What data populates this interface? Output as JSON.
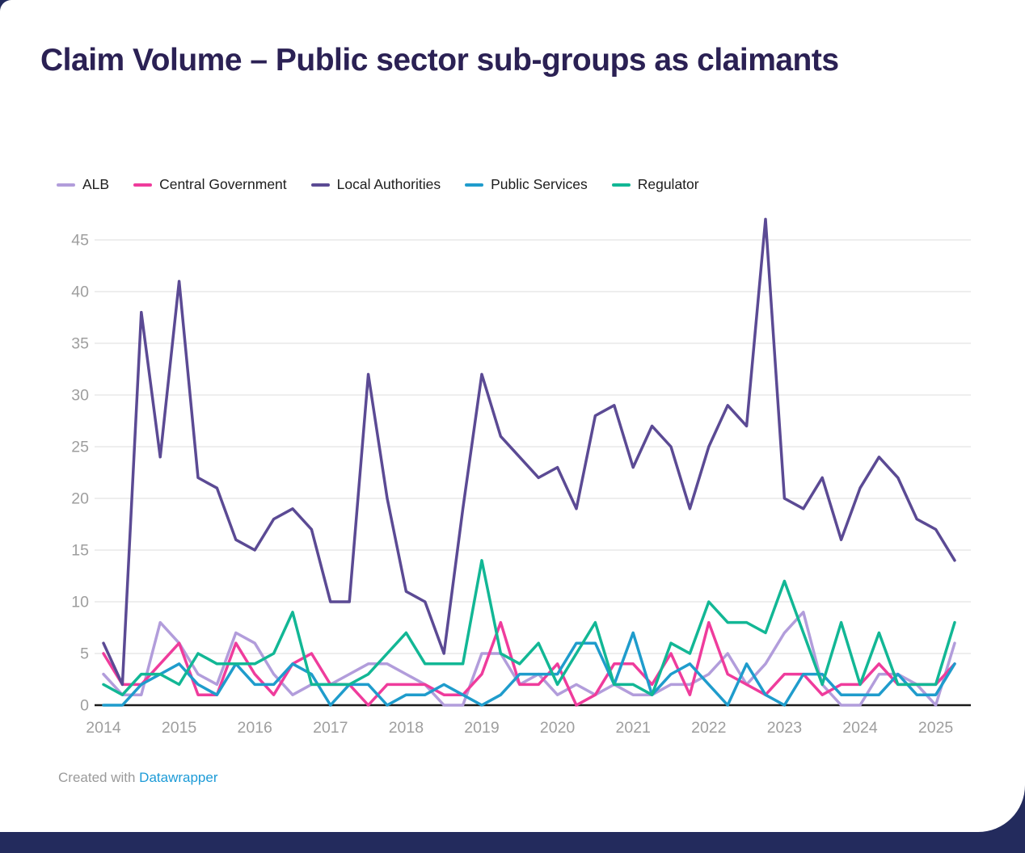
{
  "page": {
    "title": "Claim Volume – Public sector sub-groups as claimants"
  },
  "footer": {
    "prefix": "Created with ",
    "link_label": "Datawrapper"
  },
  "colors": {
    "title": "#2b2154",
    "axis_text": "#9e9e9e",
    "gridline": "#e8e8e8",
    "baseline": "#1a1a1a",
    "footer_text": "#9a9a9a",
    "footer_link": "#1d9bd7",
    "page_frame": "#232b5d",
    "card_background": "#ffffff"
  },
  "chart_data": {
    "type": "line",
    "title": "Claim Volume – Public sector sub-groups as claimants",
    "x_unit": "quarterly",
    "grid": true,
    "legend_position": "top",
    "ylim": [
      0,
      45
    ],
    "y_ticks": [
      0,
      5,
      10,
      15,
      20,
      25,
      30,
      35,
      40,
      45
    ],
    "x_year_ticks": [
      "2014",
      "2015",
      "2016",
      "2017",
      "2018",
      "2019",
      "2020",
      "2021",
      "2022",
      "2023",
      "2024",
      "2025"
    ],
    "quarters": [
      "2014 Q1",
      "2014 Q2",
      "2014 Q3",
      "2014 Q4",
      "2015 Q1",
      "2015 Q2",
      "2015 Q3",
      "2015 Q4",
      "2016 Q1",
      "2016 Q2",
      "2016 Q3",
      "2016 Q4",
      "2017 Q1",
      "2017 Q2",
      "2017 Q3",
      "2017 Q4",
      "2018 Q1",
      "2018 Q2",
      "2018 Q3",
      "2018 Q4",
      "2019 Q1",
      "2019 Q2",
      "2019 Q3",
      "2019 Q4",
      "2020 Q1",
      "2020 Q2",
      "2020 Q3",
      "2020 Q4",
      "2021 Q1",
      "2021 Q2",
      "2021 Q3",
      "2021 Q4",
      "2022 Q1",
      "2022 Q2",
      "2022 Q3",
      "2022 Q4",
      "2023 Q1",
      "2023 Q2",
      "2023 Q3",
      "2023 Q4",
      "2024 Q1",
      "2024 Q2",
      "2024 Q3",
      "2024 Q4",
      "2025 Q1",
      "2025 Q2"
    ],
    "series": [
      {
        "name": "ALB",
        "color": "#b29ddb",
        "values": [
          3,
          1,
          1,
          8,
          6,
          3,
          2,
          7,
          6,
          3,
          1,
          2,
          2,
          3,
          4,
          4,
          3,
          2,
          0,
          0,
          5,
          5,
          2,
          3,
          1,
          2,
          1,
          2,
          1,
          1,
          2,
          2,
          3,
          5,
          2,
          4,
          7,
          9,
          2,
          0,
          0,
          3,
          3,
          2,
          0,
          6
        ]
      },
      {
        "name": "Central Government",
        "color": "#ef3c9c",
        "values": [
          5,
          2,
          2,
          4,
          6,
          1,
          1,
          6,
          3,
          1,
          4,
          5,
          2,
          2,
          0,
          2,
          2,
          2,
          1,
          1,
          3,
          8,
          2,
          2,
          4,
          0,
          1,
          4,
          4,
          2,
          5,
          1,
          8,
          3,
          2,
          1,
          3,
          3,
          1,
          2,
          2,
          4,
          2,
          2,
          2,
          4
        ]
      },
      {
        "name": "Local Authorities",
        "color": "#5b4a94",
        "values": [
          6,
          2,
          38,
          24,
          41,
          22,
          21,
          16,
          15,
          18,
          19,
          17,
          10,
          10,
          32,
          20,
          11,
          10,
          5,
          19,
          32,
          26,
          24,
          22,
          23,
          19,
          28,
          29,
          23,
          27,
          25,
          19,
          25,
          29,
          27,
          47,
          20,
          19,
          22,
          16,
          21,
          24,
          22,
          18,
          17,
          14
        ]
      },
      {
        "name": "Public Services",
        "color": "#1f9ccc",
        "values": [
          0,
          0,
          2,
          3,
          4,
          2,
          1,
          4,
          2,
          2,
          4,
          3,
          0,
          2,
          2,
          0,
          1,
          1,
          2,
          1,
          0,
          1,
          3,
          3,
          3,
          6,
          6,
          2,
          7,
          1,
          3,
          4,
          2,
          0,
          4,
          1,
          0,
          3,
          3,
          1,
          1,
          1,
          3,
          1,
          1,
          4
        ]
      },
      {
        "name": "Regulator",
        "color": "#12b795",
        "values": [
          2,
          1,
          3,
          3,
          2,
          5,
          4,
          4,
          4,
          5,
          9,
          2,
          2,
          2,
          3,
          5,
          7,
          4,
          4,
          4,
          14,
          5,
          4,
          6,
          2,
          5,
          8,
          2,
          2,
          1,
          6,
          5,
          10,
          8,
          8,
          7,
          12,
          7,
          2,
          8,
          2,
          7,
          2,
          2,
          2,
          8
        ]
      }
    ]
  }
}
